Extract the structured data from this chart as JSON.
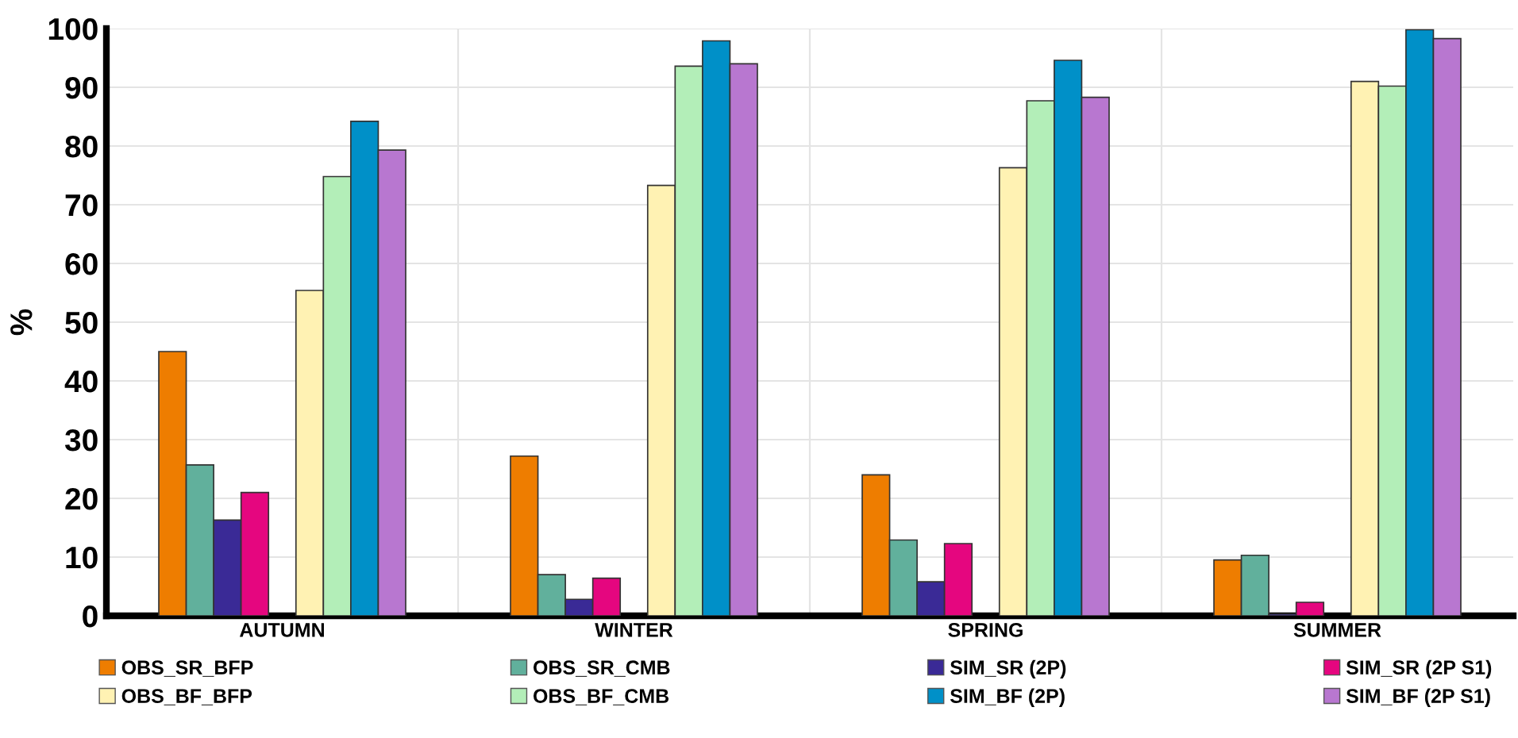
{
  "chart_data": {
    "type": "bar",
    "ylabel": "%",
    "categories": [
      "AUTUMN",
      "WINTER",
      "SPRING",
      "SUMMER"
    ],
    "ylim": [
      0,
      100
    ],
    "yticks": [
      0,
      10,
      20,
      30,
      40,
      50,
      60,
      70,
      80,
      90,
      100
    ],
    "grid": true,
    "legend": "bottom",
    "series": [
      {
        "name": "OBS_SR_BFP",
        "color": "#ee7d00",
        "values": [
          45,
          27.2,
          24,
          9.5
        ]
      },
      {
        "name": "OBS_BF_BFP",
        "color": "#fff2b3",
        "values": [
          55.4,
          73.3,
          76.3,
          91
        ]
      },
      {
        "name": "OBS_SR_CMB",
        "color": "#61b09c",
        "values": [
          25.7,
          7,
          12.9,
          10.3
        ]
      },
      {
        "name": "OBS_BF_CMB",
        "color": "#b3eeb8",
        "values": [
          74.8,
          93.6,
          87.7,
          90.2
        ]
      },
      {
        "name": "SIM_SR (2P)",
        "color": "#3a2a96",
        "values": [
          16.3,
          2.8,
          5.8,
          0.3
        ]
      },
      {
        "name": "SIM_BF (2P)",
        "color": "#0090c8",
        "values": [
          84.2,
          97.9,
          94.6,
          99.8
        ]
      },
      {
        "name": "SIM_SR (2P S1)",
        "color": "#e5067f",
        "values": [
          21,
          6.4,
          12.3,
          2.3
        ]
      },
      {
        "name": "SIM_BF (2P S1)",
        "color": "#b877d0",
        "values": [
          79.3,
          94,
          88.3,
          98.3
        ]
      }
    ]
  }
}
